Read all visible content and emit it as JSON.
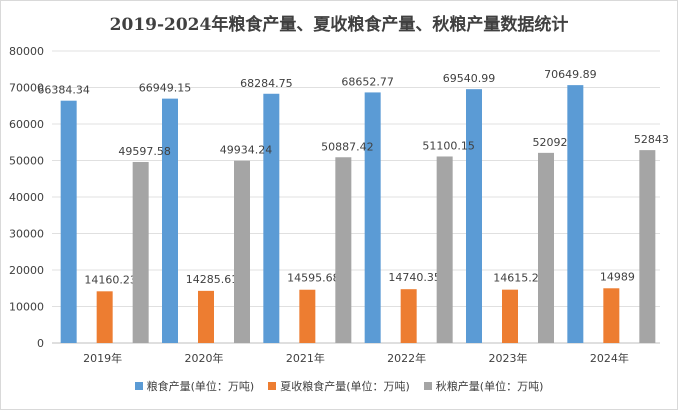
{
  "chart_data": {
    "type": "bar",
    "title": "2019-2024年粮食产量、夏收粮食产量、秋粮产量数据统计",
    "categories": [
      "2019年",
      "2020年",
      "2021年",
      "2022年",
      "2023年",
      "2024年"
    ],
    "series": [
      {
        "name": "粮食产量(单位：万吨)",
        "color": "#5b9bd5",
        "values": [
          66384.34,
          66949.15,
          68284.75,
          68652.77,
          69540.99,
          70649.89
        ],
        "labels": [
          "66384.34",
          "66949.15",
          "68284.75",
          "68652.77",
          "69540.99",
          "70649.89"
        ]
      },
      {
        "name": "夏收粮食产量(单位：万吨)",
        "color": "#ed7d31",
        "values": [
          14160.23,
          14285.61,
          14595.68,
          14740.35,
          14615.2,
          14989
        ],
        "labels": [
          "14160.23",
          "14285.61",
          "14595.68",
          "14740.35",
          "14615.2",
          "14989"
        ]
      },
      {
        "name": "秋粮产量(单位：万吨)",
        "color": "#a5a5a5",
        "values": [
          49597.58,
          49934.24,
          50887.42,
          51100.15,
          52092,
          52843
        ],
        "labels": [
          "49597.58",
          "49934.24",
          "50887.42",
          "51100.15",
          "52092",
          "52843"
        ]
      }
    ],
    "ylim": [
      0,
      80000
    ],
    "yticks": [
      "0",
      "10000",
      "20000",
      "30000",
      "40000",
      "50000",
      "60000",
      "70000",
      "80000"
    ],
    "grid": true,
    "legend_position": "bottom"
  }
}
